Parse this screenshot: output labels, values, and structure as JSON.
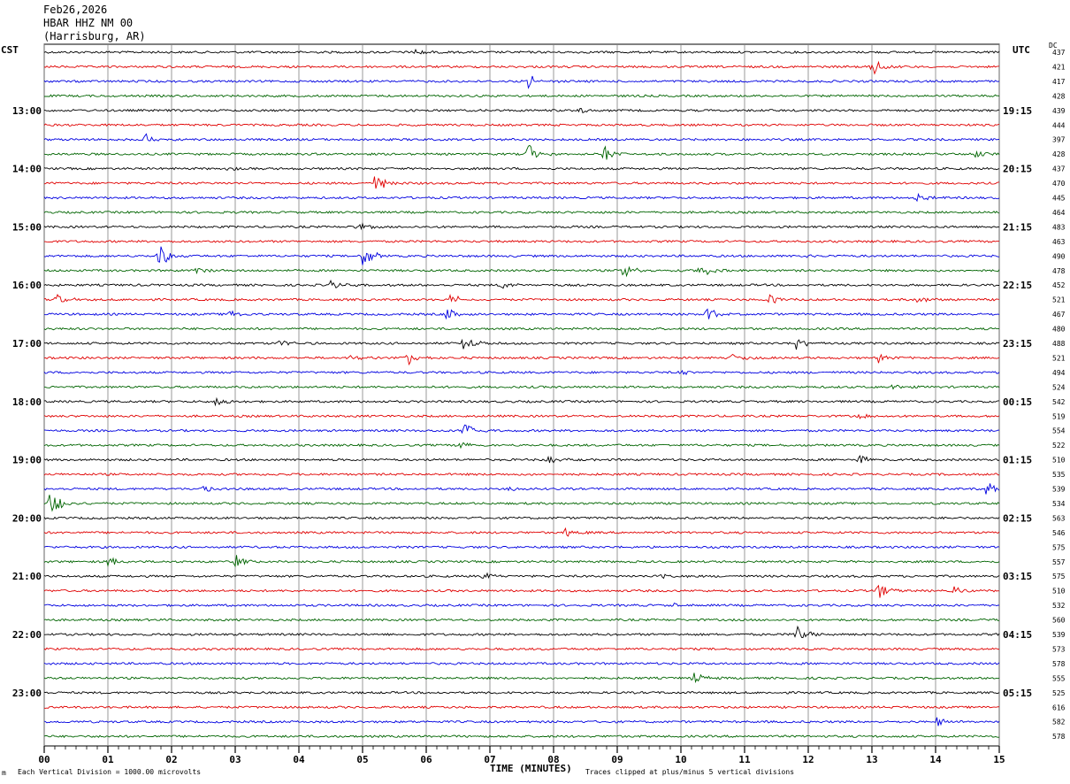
{
  "header": {
    "date": "Feb26,2026",
    "station": "HBAR HHZ NM 00",
    "location": "(Harrisburg, AR)"
  },
  "left_zone_label": "CST",
  "right_zone_label": "UTC",
  "dc_label": "DC",
  "footer": {
    "scale_note": "Each Vertical Division = 1000.00 microvolts",
    "clip_note": "Traces clipped at plus/minus 5 vertical divisions",
    "corner_mark": "m"
  },
  "colors": {
    "trace_cycle": [
      "#000000",
      "#e00000",
      "#0000e0",
      "#006400"
    ],
    "grid": "#808080"
  },
  "chart_data": {
    "type": "seismogram-helicorder",
    "xlabel": "TIME (MINUTES)",
    "xlim": [
      0,
      15
    ],
    "x_ticks": [
      "00",
      "01",
      "02",
      "03",
      "04",
      "05",
      "06",
      "07",
      "08",
      "09",
      "10",
      "11",
      "12",
      "13",
      "14",
      "15"
    ],
    "rows_per_hour": 4,
    "left_hour_labels": [
      {
        "row": 4,
        "label": "13:00"
      },
      {
        "row": 8,
        "label": "14:00"
      },
      {
        "row": 12,
        "label": "15:00"
      },
      {
        "row": 16,
        "label": "16:00"
      },
      {
        "row": 20,
        "label": "17:00"
      },
      {
        "row": 24,
        "label": "18:00"
      },
      {
        "row": 28,
        "label": "19:00"
      },
      {
        "row": 32,
        "label": "20:00"
      },
      {
        "row": 36,
        "label": "21:00"
      },
      {
        "row": 40,
        "label": "22:00"
      },
      {
        "row": 44,
        "label": "23:00"
      }
    ],
    "right_hour_labels": [
      {
        "row": 4,
        "label": "19:15"
      },
      {
        "row": 8,
        "label": "20:15"
      },
      {
        "row": 12,
        "label": "21:15"
      },
      {
        "row": 16,
        "label": "22:15"
      },
      {
        "row": 20,
        "label": "23:15"
      },
      {
        "row": 24,
        "label": "00:15"
      },
      {
        "row": 28,
        "label": "01:15"
      },
      {
        "row": 32,
        "label": "02:15"
      },
      {
        "row": 36,
        "label": "03:15"
      },
      {
        "row": 40,
        "label": "04:15"
      },
      {
        "row": 44,
        "label": "05:15"
      }
    ],
    "dc_offsets": [
      437,
      421,
      417,
      428,
      439,
      444,
      397,
      428,
      437,
      470,
      445,
      464,
      483,
      463,
      490,
      478,
      452,
      521,
      467,
      480,
      488,
      521,
      494,
      524,
      542,
      519,
      554,
      522,
      510,
      535,
      539,
      534,
      563,
      546,
      575,
      557,
      575,
      510,
      532,
      560,
      539,
      573,
      578,
      555,
      525,
      616,
      582,
      578
    ],
    "events": [
      {
        "row": 0,
        "minute": 5.8,
        "amp": 4
      },
      {
        "row": 1,
        "minute": 13.0,
        "amp": 12
      },
      {
        "row": 2,
        "minute": 7.6,
        "amp": 8
      },
      {
        "row": 4,
        "minute": 8.4,
        "amp": 4
      },
      {
        "row": 6,
        "minute": 1.6,
        "amp": 7
      },
      {
        "row": 7,
        "minute": 7.6,
        "amp": 12
      },
      {
        "row": 7,
        "minute": 8.8,
        "amp": 9
      },
      {
        "row": 7,
        "minute": 14.6,
        "amp": 4
      },
      {
        "row": 8,
        "minute": 2.9,
        "amp": 2
      },
      {
        "row": 9,
        "minute": 5.2,
        "amp": 11
      },
      {
        "row": 10,
        "minute": 13.7,
        "amp": 5
      },
      {
        "row": 12,
        "minute": 4.9,
        "amp": 6
      },
      {
        "row": 14,
        "minute": 1.8,
        "amp": 14
      },
      {
        "row": 14,
        "minute": 5.0,
        "amp": 14
      },
      {
        "row": 14,
        "minute": 11.9,
        "amp": 4
      },
      {
        "row": 15,
        "minute": 2.4,
        "amp": 4
      },
      {
        "row": 15,
        "minute": 9.1,
        "amp": 9
      },
      {
        "row": 15,
        "minute": 10.3,
        "amp": 9
      },
      {
        "row": 16,
        "minute": 4.5,
        "amp": 5
      },
      {
        "row": 16,
        "minute": 7.2,
        "amp": 5
      },
      {
        "row": 17,
        "minute": 0.2,
        "amp": 6
      },
      {
        "row": 17,
        "minute": 6.4,
        "amp": 8
      },
      {
        "row": 17,
        "minute": 11.4,
        "amp": 6
      },
      {
        "row": 17,
        "minute": 13.7,
        "amp": 6
      },
      {
        "row": 18,
        "minute": 2.9,
        "amp": 5
      },
      {
        "row": 18,
        "minute": 6.3,
        "amp": 8
      },
      {
        "row": 18,
        "minute": 10.4,
        "amp": 9
      },
      {
        "row": 20,
        "minute": 3.7,
        "amp": 4
      },
      {
        "row": 20,
        "minute": 6.6,
        "amp": 10
      },
      {
        "row": 20,
        "minute": 11.8,
        "amp": 8
      },
      {
        "row": 21,
        "minute": 4.8,
        "amp": 5
      },
      {
        "row": 21,
        "minute": 5.7,
        "amp": 9
      },
      {
        "row": 21,
        "minute": 10.8,
        "amp": 6
      },
      {
        "row": 21,
        "minute": 13.1,
        "amp": 5
      },
      {
        "row": 22,
        "minute": 10.0,
        "amp": 3
      },
      {
        "row": 23,
        "minute": 13.3,
        "amp": 3
      },
      {
        "row": 24,
        "minute": 2.7,
        "amp": 8
      },
      {
        "row": 25,
        "minute": 12.8,
        "amp": 3
      },
      {
        "row": 26,
        "minute": 6.6,
        "amp": 12
      },
      {
        "row": 27,
        "minute": 6.5,
        "amp": 8
      },
      {
        "row": 28,
        "minute": 7.9,
        "amp": 6
      },
      {
        "row": 28,
        "minute": 12.8,
        "amp": 6
      },
      {
        "row": 30,
        "minute": 2.5,
        "amp": 5
      },
      {
        "row": 30,
        "minute": 7.3,
        "amp": 3
      },
      {
        "row": 30,
        "minute": 14.8,
        "amp": 9
      },
      {
        "row": 31,
        "minute": 0.1,
        "amp": 16
      },
      {
        "row": 33,
        "minute": 8.2,
        "amp": 6
      },
      {
        "row": 35,
        "minute": 1.0,
        "amp": 6
      },
      {
        "row": 35,
        "minute": 3.0,
        "amp": 8
      },
      {
        "row": 36,
        "minute": 6.9,
        "amp": 4
      },
      {
        "row": 36,
        "minute": 9.7,
        "amp": 4
      },
      {
        "row": 37,
        "minute": 13.1,
        "amp": 10
      },
      {
        "row": 37,
        "minute": 14.3,
        "amp": 6
      },
      {
        "row": 38,
        "minute": 9.9,
        "amp": 2
      },
      {
        "row": 40,
        "minute": 11.8,
        "amp": 12
      },
      {
        "row": 43,
        "minute": 10.2,
        "amp": 6
      },
      {
        "row": 46,
        "minute": 14.0,
        "amp": 6
      }
    ]
  }
}
